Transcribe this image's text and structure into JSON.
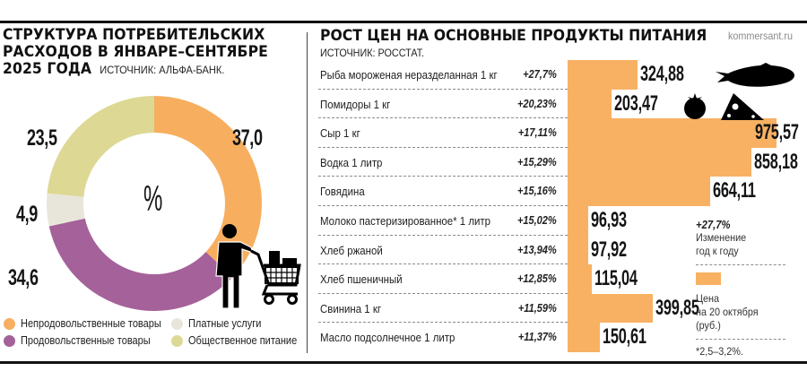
{
  "left_panel": {
    "title_line1": "СТРУКТУРА ПОТРЕБИТЕЛЬСКИХ",
    "title_line2": "РАСХОДОВ В ЯНВАРЕ–СЕНТЯБРЕ",
    "title_line3": "2025 ГОДА",
    "source": "ИСТОЧНИК: АЛЬФА-БАНК.",
    "center_symbol": "%",
    "icon": "shopper-with-cart-icon",
    "legend": [
      {
        "label": "Непродовольственные товары",
        "color": "#F7AE5F"
      },
      {
        "label": "Продовольственные товары",
        "color": "#A5619A"
      },
      {
        "label": "Платные услуги",
        "color": "#E8E6DA"
      },
      {
        "label": "Общественное питание",
        "color": "#DDD894"
      }
    ]
  },
  "right_panel": {
    "title": "РОСТ ЦЕН НА ОСНОВНЫЕ ПРОДУКТЫ ПИТАНИЯ",
    "brand": "kommersant.ru",
    "source": "ИСТОЧНИК: РОССТАТ.",
    "icons": [
      "fish-icon",
      "tomato-icon",
      "cheese-icon"
    ],
    "legend": {
      "change_example": "+27,7%",
      "change_label_1": "Изменение",
      "change_label_2": "год к году",
      "price_label_1": "Цена",
      "price_label_2": "на 20 октября",
      "price_label_3": "(руб.)",
      "footnote": "*2,5–3,2%."
    },
    "bar_color": "#F8B163"
  },
  "chart_data": [
    {
      "type": "pie",
      "title": "Структура потребительских расходов в январе–сентябре 2025 года",
      "subtitle": "Источник: Альфа-Банк.",
      "unit": "%",
      "categories": [
        "Непродовольственные товары",
        "Продовольственные товары",
        "Платные услуги",
        "Общественное питание"
      ],
      "values": [
        37.0,
        34.6,
        4.9,
        23.5
      ],
      "value_labels": [
        "37,0",
        "34,6",
        "4,9",
        "23,5"
      ],
      "colors": [
        "#F7AE5F",
        "#A5619A",
        "#E8E6DA",
        "#DDD894"
      ],
      "donut": true,
      "legend_position": "bottom"
    },
    {
      "type": "bar",
      "orientation": "horizontal",
      "title": "Рост цен на основные продукты питания",
      "subtitle": "Источник: Росстат.",
      "categories": [
        "Рыба мороженая неразделанная 1 кг",
        "Помидоры 1 кг",
        "Сыр 1 кг",
        "Водка 1 литр",
        "Говядина",
        "Молоко пастеризированное* 1 литр",
        "Хлеб ржаной",
        "Хлеб пшеничный",
        "Свинина 1 кг",
        "Масло подсолнечное 1 литр"
      ],
      "series": [
        {
          "name": "Цена на 20 октября (руб.)",
          "values": [
            324.88,
            203.47,
            975.57,
            858.18,
            664.11,
            96.93,
            97.92,
            115.04,
            399.85,
            150.61
          ],
          "labels": [
            "324,88",
            "203,47",
            "975,57",
            "858,18",
            "664,11",
            "96,93",
            "97,92",
            "115,04",
            "399,85",
            "150,61"
          ]
        },
        {
          "name": "Изменение год к году",
          "values": [
            27.7,
            20.23,
            17.11,
            15.29,
            15.16,
            15.02,
            13.94,
            12.85,
            11.59,
            11.37
          ],
          "labels": [
            "+27,7%",
            "+20,23%",
            "+17,11%",
            "+15,29%",
            "+15,16%",
            "+15,02%",
            "+13,94%",
            "+12,85%",
            "+11,59%",
            "+11,37%"
          ]
        }
      ],
      "footnote": "*2,5–3,2%.",
      "xlim": [
        0,
        1000
      ],
      "grid": false
    }
  ]
}
